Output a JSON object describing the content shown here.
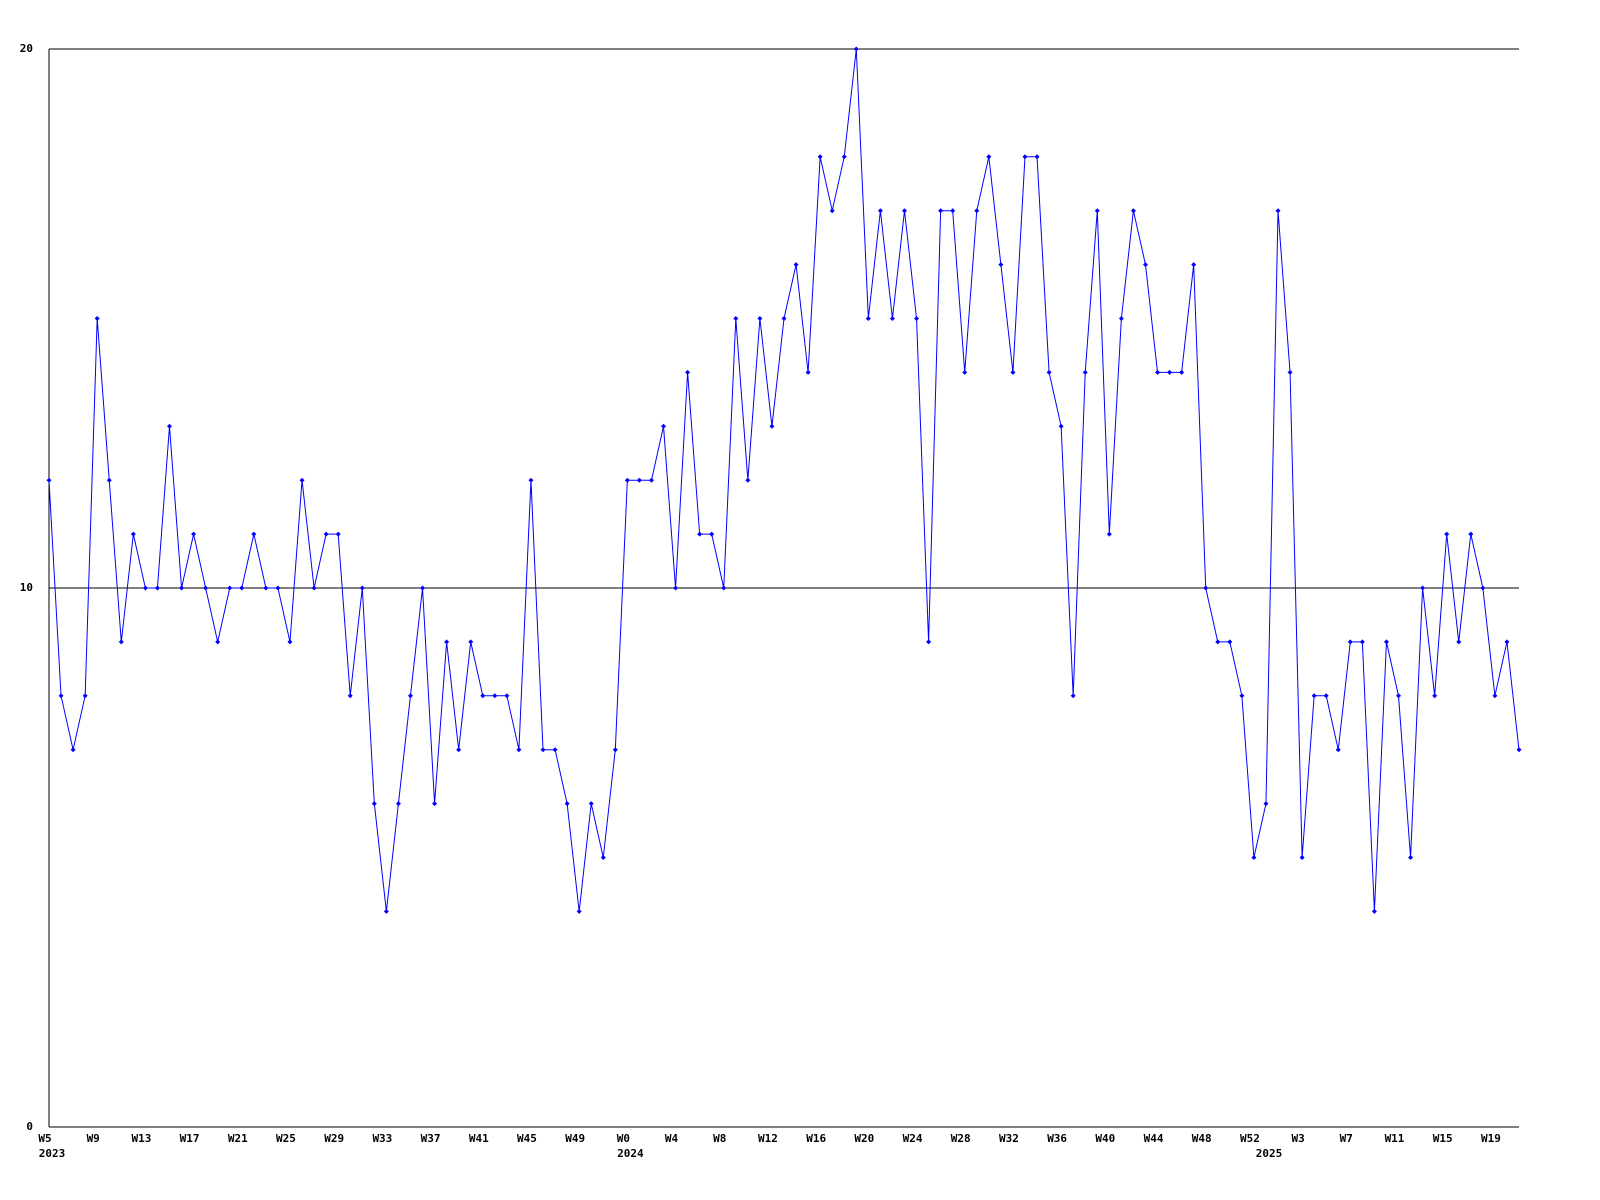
{
  "chart_data": {
    "type": "line",
    "categories": [
      "W5",
      null,
      null,
      null,
      "W9",
      null,
      null,
      null,
      "W13",
      null,
      null,
      null,
      "W17",
      null,
      null,
      null,
      "W21",
      null,
      null,
      null,
      "W25",
      null,
      null,
      null,
      "W29",
      null,
      null,
      null,
      "W33",
      null,
      null,
      null,
      "W37",
      null,
      null,
      null,
      "W41",
      null,
      null,
      null,
      "W45",
      null,
      null,
      null,
      "W49",
      null,
      null,
      null,
      "W0",
      null,
      null,
      null,
      "W4",
      null,
      null,
      null,
      "W8",
      null,
      null,
      null,
      "W12",
      null,
      null,
      null,
      "W16",
      null,
      null,
      null,
      "W20",
      null,
      null,
      null,
      "W24",
      null,
      null,
      null,
      "W28",
      null,
      null,
      null,
      "W32",
      null,
      null,
      null,
      "W36",
      null,
      null,
      null,
      "W40",
      null,
      null,
      null,
      "W44",
      null,
      null,
      null,
      "W48",
      null,
      null,
      null,
      "W52",
      null,
      null,
      null,
      "W3",
      null,
      null,
      null,
      "W7",
      null,
      null,
      null,
      "W11",
      null,
      null,
      null,
      "W15",
      null,
      null,
      null,
      "W19",
      null,
      null
    ],
    "years": [
      "2023",
      null,
      null,
      null,
      null,
      null,
      null,
      null,
      null,
      null,
      null,
      null,
      null,
      null,
      null,
      null,
      null,
      null,
      null,
      null,
      null,
      null,
      null,
      null,
      null,
      null,
      null,
      null,
      null,
      null,
      null,
      null,
      null,
      null,
      null,
      null,
      null,
      null,
      null,
      null,
      null,
      null,
      null,
      null,
      null,
      null,
      null,
      null,
      "2024",
      null,
      null,
      null,
      null,
      null,
      null,
      null,
      null,
      null,
      null,
      null,
      null,
      null,
      null,
      null,
      null,
      null,
      null,
      null,
      null,
      null,
      null,
      null,
      null,
      null,
      null,
      null,
      null,
      null,
      null,
      null,
      null,
      null,
      null,
      null,
      null,
      null,
      null,
      null,
      null,
      null,
      null,
      null,
      null,
      null,
      null,
      null,
      null,
      null,
      null,
      null,
      null,
      "2025",
      null,
      null,
      null,
      null,
      null,
      null,
      null,
      null,
      null,
      null,
      null,
      null,
      null,
      null,
      null,
      null,
      null,
      null,
      null,
      null,
      null
    ],
    "series": [
      {
        "color": "#0000ff",
        "values": [
          12,
          8,
          7,
          8,
          15,
          12,
          9,
          11,
          10,
          10,
          13,
          10,
          11,
          10,
          9,
          10,
          10,
          11,
          10,
          10,
          9,
          12,
          10,
          11,
          11,
          8,
          10,
          6,
          4,
          6,
          8,
          10,
          6,
          9,
          7,
          9,
          8,
          8,
          8,
          7,
          12,
          7,
          7,
          6,
          4,
          6,
          5,
          7,
          12,
          12,
          12,
          13,
          10,
          14,
          11,
          11,
          10,
          15,
          12,
          15,
          13,
          15,
          16,
          14,
          18,
          17,
          18,
          20,
          15,
          17,
          15,
          17,
          15,
          9,
          17,
          17,
          14,
          17,
          18,
          16,
          14,
          18,
          18,
          14,
          13,
          8,
          14,
          17,
          11,
          15,
          17,
          16,
          14,
          14,
          14,
          16,
          10,
          9,
          9,
          8,
          5,
          6,
          17,
          14,
          5,
          8,
          8,
          7,
          9,
          9,
          4,
          9,
          8,
          5,
          10,
          8,
          11,
          9,
          11,
          10,
          8,
          9,
          7
        ]
      }
    ],
    "ylim": [
      0,
      20
    ],
    "yticks": [
      0,
      10,
      20
    ],
    "grid": true
  }
}
